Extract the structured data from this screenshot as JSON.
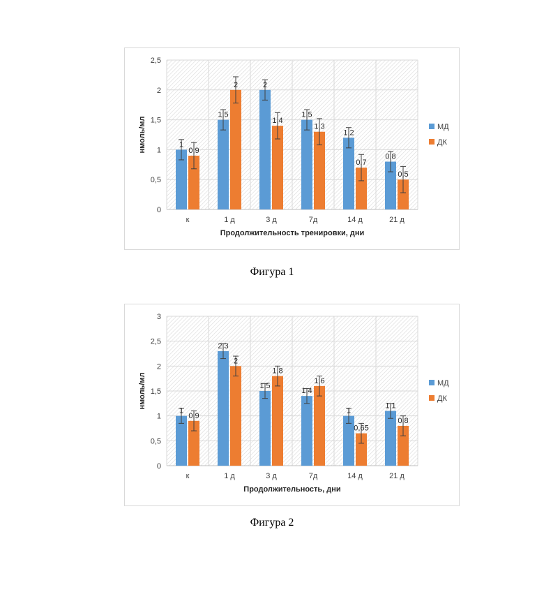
{
  "figures": [
    {
      "caption": "Фигура 1",
      "chart_data": {
        "type": "bar",
        "title": "",
        "xlabel": "Продолжительность тренировки, дни",
        "ylabel": "нмоль/мл",
        "ylim": [
          0,
          2.5
        ],
        "yticks": [
          0,
          0.5,
          1,
          1.5,
          2,
          2.5
        ],
        "ytick_labels": [
          "0",
          "0,5",
          "1",
          "1,5",
          "2",
          "2,5"
        ],
        "categories": [
          "к",
          "1 д",
          "3 д",
          "7д",
          "14 д",
          "21 д"
        ],
        "series": [
          {
            "name": "МД",
            "color": "#5b9bd5",
            "values": [
              1,
              1.5,
              2,
              1.5,
              1.2,
              0.8
            ],
            "data_labels": [
              "1",
              "1,5",
              "2",
              "1,5",
              "1,2",
              "0,8"
            ],
            "errors": [
              0.17,
              0.17,
              0.17,
              0.17,
              0.17,
              0.17
            ]
          },
          {
            "name": "ДК",
            "color": "#ed7d31",
            "values": [
              0.9,
              2,
              1.4,
              1.3,
              0.7,
              0.5
            ],
            "data_labels": [
              "0,9",
              "2",
              "1,4",
              "1,3",
              "0,7",
              "0,5"
            ],
            "errors": [
              0.22,
              0.22,
              0.22,
              0.22,
              0.22,
              0.22
            ]
          }
        ],
        "grid": "hatched plot area with vertical category gridlines",
        "legend": "right"
      }
    },
    {
      "caption": "Фигура 2",
      "chart_data": {
        "type": "bar",
        "title": "",
        "xlabel": "Продолжительность, дни",
        "ylabel": "нмоль/мл",
        "ylim": [
          0,
          3
        ],
        "yticks": [
          0,
          0.5,
          1,
          1.5,
          2,
          2.5,
          3
        ],
        "ytick_labels": [
          "0",
          "0,5",
          "1",
          "1,5",
          "2",
          "2,5",
          "3"
        ],
        "categories": [
          "к",
          "1 д",
          "3 д",
          "7д",
          "14 д",
          "21 д"
        ],
        "series": [
          {
            "name": "МД",
            "color": "#5b9bd5",
            "values": [
              1,
              2.3,
              1.5,
              1.4,
              1,
              1.1
            ],
            "data_labels": [
              "1",
              "2,3",
              "1,5",
              "1,4",
              "1",
              "1,1"
            ],
            "errors": [
              0.15,
              0.15,
              0.15,
              0.15,
              0.15,
              0.15
            ]
          },
          {
            "name": "ДК",
            "color": "#ed7d31",
            "values": [
              0.9,
              2,
              1.8,
              1.6,
              0.65,
              0.8
            ],
            "data_labels": [
              "0,9",
              "2",
              "1,8",
              "1,6",
              "0,65",
              "0,8"
            ],
            "errors": [
              0.2,
              0.2,
              0.2,
              0.2,
              0.2,
              0.2
            ]
          }
        ],
        "grid": "hatched plot area with vertical category gridlines",
        "legend": "right"
      }
    }
  ]
}
